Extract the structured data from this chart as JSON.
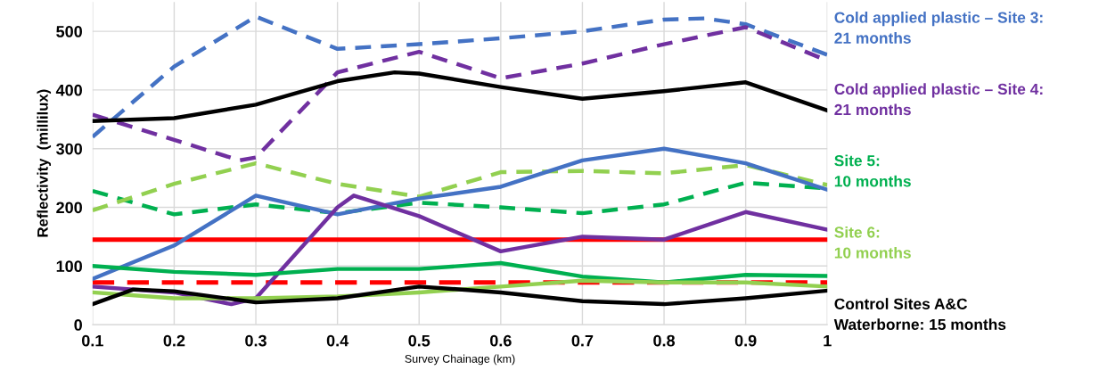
{
  "chart_data": {
    "type": "line",
    "xlabel": "Survey Chainage (km)",
    "ylabel": "Reflectivity  (millilux)",
    "xlim": [
      0.1,
      1
    ],
    "xticks": [
      0.1,
      0.2,
      0.3,
      0.4,
      0.5,
      0.6,
      0.7,
      0.8,
      0.9,
      1
    ],
    "ylim": [
      0,
      550
    ],
    "yticks": [
      0,
      100,
      200,
      300,
      400,
      500
    ],
    "grid": true,
    "legend": "right",
    "marker": "none",
    "series": [
      {
        "name": "Cold applied plastic – Site 3:\n21 months",
        "color": "#4472c4",
        "line_style": "dashed",
        "x": [
          0.1,
          0.2,
          0.3,
          0.4,
          0.5,
          0.6,
          0.7,
          0.8,
          0.85,
          0.9,
          1
        ],
        "values": [
          320,
          440,
          525,
          470,
          478,
          488,
          500,
          520,
          522,
          512,
          460
        ]
      },
      {
        "name": "Cold applied plastic – Site 4:\n21 months",
        "color": "#7030a0",
        "line_style": "dashed",
        "x": [
          0.1,
          0.2,
          0.28,
          0.3,
          0.4,
          0.5,
          0.6,
          0.7,
          0.8,
          0.9,
          1
        ],
        "values": [
          358,
          315,
          280,
          285,
          430,
          465,
          420,
          445,
          478,
          507,
          450
        ]
      },
      {
        "name": "Site 5:\n10 months",
        "color": "#00b050",
        "line_style": "dashed",
        "x": [
          0.1,
          0.2,
          0.3,
          0.4,
          0.5,
          0.6,
          0.7,
          0.8,
          0.9,
          1
        ],
        "values": [
          228,
          188,
          205,
          190,
          208,
          200,
          190,
          205,
          242,
          232
        ]
      },
      {
        "name": "Site 6:\n10 months",
        "color": "#92d050",
        "line_style": "dashed",
        "x": [
          0.1,
          0.2,
          0.3,
          0.4,
          0.5,
          0.6,
          0.7,
          0.8,
          0.9,
          1
        ],
        "values": [
          195,
          240,
          275,
          240,
          218,
          260,
          262,
          258,
          272,
          238
        ]
      },
      {
        "name": "Control Sites A&C\nWaterborne: 15 months",
        "color": "#000000",
        "line_style": "solid",
        "x": [
          0.1,
          0.2,
          0.3,
          0.4,
          0.47,
          0.5,
          0.6,
          0.7,
          0.8,
          0.9,
          1
        ],
        "values": [
          347,
          352,
          375,
          415,
          430,
          428,
          405,
          385,
          398,
          413,
          365
        ]
      },
      {
        "color": "#4472c4",
        "line_style": "solid",
        "x": [
          0.1,
          0.2,
          0.3,
          0.4,
          0.5,
          0.6,
          0.7,
          0.8,
          0.9,
          1
        ],
        "values": [
          78,
          135,
          220,
          188,
          215,
          235,
          280,
          300,
          275,
          230
        ]
      },
      {
        "color": "#7030a0",
        "line_style": "solid",
        "x": [
          0.1,
          0.2,
          0.27,
          0.3,
          0.4,
          0.42,
          0.5,
          0.6,
          0.7,
          0.8,
          0.9,
          1
        ],
        "values": [
          65,
          55,
          35,
          45,
          200,
          220,
          185,
          125,
          150,
          145,
          192,
          162
        ]
      },
      {
        "color": "#00b050",
        "line_style": "solid",
        "x": [
          0.1,
          0.2,
          0.3,
          0.4,
          0.5,
          0.6,
          0.7,
          0.8,
          0.9,
          1
        ],
        "values": [
          100,
          90,
          85,
          95,
          95,
          105,
          82,
          72,
          85,
          83
        ]
      },
      {
        "color": "#92d050",
        "line_style": "solid",
        "x": [
          0.1,
          0.2,
          0.3,
          0.4,
          0.5,
          0.6,
          0.7,
          0.8,
          0.9,
          1
        ],
        "values": [
          55,
          45,
          45,
          48,
          55,
          65,
          75,
          72,
          72,
          65
        ]
      },
      {
        "color": "#000000",
        "line_style": "solid",
        "x": [
          0.1,
          0.15,
          0.2,
          0.3,
          0.4,
          0.5,
          0.6,
          0.7,
          0.8,
          0.9,
          1
        ],
        "values": [
          35,
          60,
          57,
          38,
          45,
          65,
          55,
          40,
          35,
          45,
          58
        ]
      }
    ],
    "ref_lines": [
      {
        "axis": "y",
        "value": 145,
        "color": "#ff0000",
        "line_style": "solid"
      },
      {
        "axis": "y",
        "value": 72,
        "color": "#ff0000",
        "line_style": "dashed"
      }
    ]
  }
}
